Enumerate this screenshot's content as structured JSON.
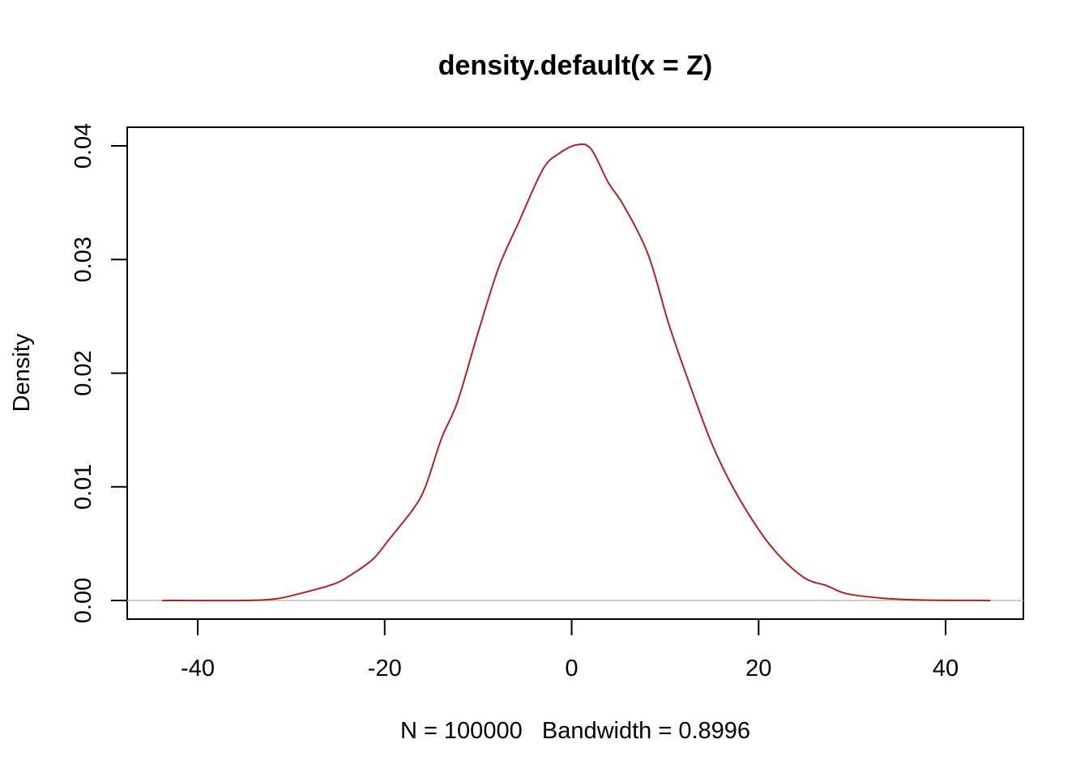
{
  "chart_data": {
    "type": "line",
    "title": "density.default(x = Z)",
    "xlabel": "N = 100000   Bandwidth = 0.8996",
    "ylabel": "Density",
    "xlim": [
      -48,
      48
    ],
    "ylim": [
      -0.0016,
      0.0417
    ],
    "xticks": [
      -40,
      -20,
      0,
      20,
      40
    ],
    "xtick_labels": [
      "-40",
      "-20",
      "0",
      "20",
      "40"
    ],
    "yticks": [
      0,
      0.01,
      0.02,
      0.03,
      0.04
    ],
    "ytick_labels": [
      "0.00",
      "0.01",
      "0.02",
      "0.03",
      "0.04"
    ],
    "grid": false,
    "zero_line_color": "#BEBEBE",
    "line_color": "#B22222",
    "x": [
      -43.8,
      -35.1,
      -31.7,
      -29.1,
      -25.6,
      -23.9,
      -21.3,
      -19.5,
      -16.9,
      -15.6,
      -13.9,
      -12.2,
      -10.0,
      -7.8,
      -5.7,
      -3.1,
      -1.4,
      0.6,
      2.1,
      3.9,
      5.6,
      8.2,
      10.4,
      12.5,
      15.1,
      17.7,
      21.2,
      24.7,
      27.3,
      29.4,
      33.3,
      37.7,
      44.8
    ],
    "y": [
      0,
      0.0,
      0.00014,
      0.0006,
      0.0014,
      0.0021,
      0.0036,
      0.0054,
      0.0081,
      0.0101,
      0.0143,
      0.0175,
      0.0236,
      0.0293,
      0.0332,
      0.0379,
      0.0393,
      0.0401,
      0.0397,
      0.0368,
      0.0347,
      0.0304,
      0.0243,
      0.0193,
      0.0136,
      0.0093,
      0.0049,
      0.0021,
      0.0013,
      0.0006,
      0.0002,
      4e-05,
      0
    ]
  }
}
